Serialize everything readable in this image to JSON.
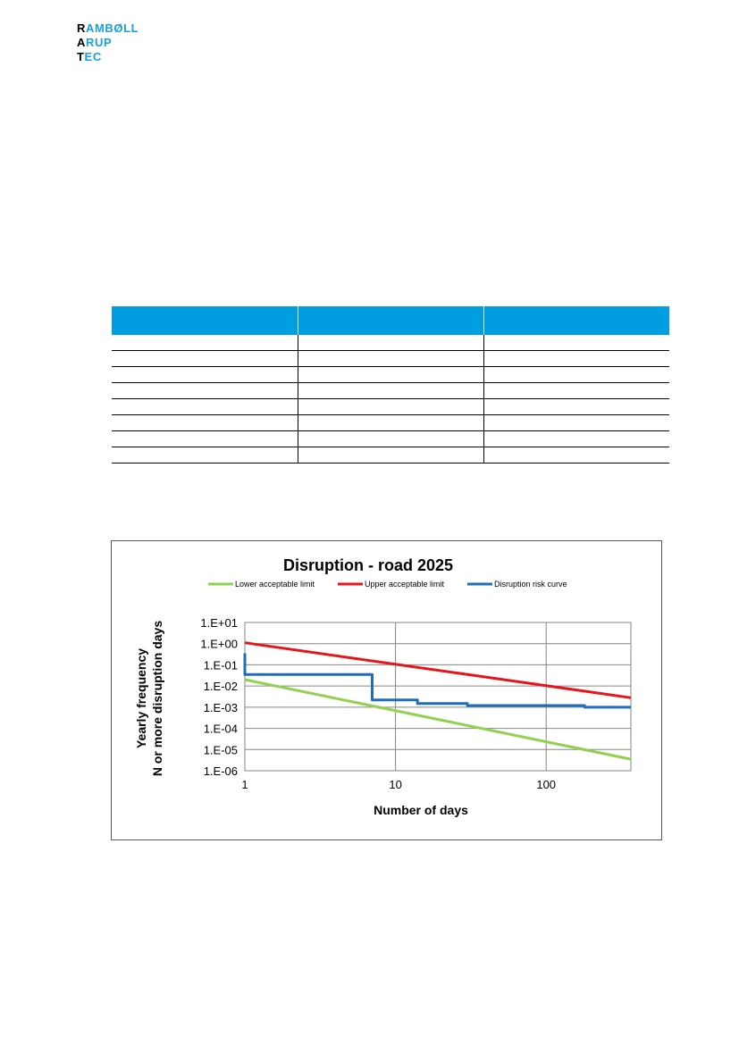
{
  "logo": {
    "lines": [
      {
        "first": "R",
        "rest": "AMBØLL"
      },
      {
        "first": "A",
        "rest": "RUP"
      },
      {
        "first": "T",
        "rest": "EC"
      }
    ]
  },
  "table": {
    "header_color": "#009ee0",
    "columns": [
      "",
      "",
      ""
    ],
    "rows": [
      [
        "",
        "",
        ""
      ],
      [
        "",
        "",
        ""
      ],
      [
        "",
        "",
        ""
      ],
      [
        "",
        "",
        ""
      ],
      [
        "",
        "",
        ""
      ],
      [
        "",
        "",
        ""
      ],
      [
        "",
        "",
        ""
      ],
      [
        "",
        "",
        ""
      ]
    ]
  },
  "chart_data": {
    "type": "line",
    "title": "Disruption - road 2025",
    "xlabel": "Number of days",
    "ylabel": [
      "Yearly frequency",
      "N or more disruption days"
    ],
    "x_scale": "log",
    "y_scale": "log",
    "xlim": [
      1,
      365
    ],
    "ylim": [
      1e-06,
      10
    ],
    "x_ticks": [
      {
        "value": 1,
        "label": "1"
      },
      {
        "value": 10,
        "label": "10"
      },
      {
        "value": 100,
        "label": "100"
      }
    ],
    "y_ticks": [
      {
        "value": 10,
        "label": "1.E+01"
      },
      {
        "value": 1,
        "label": "1.E+00"
      },
      {
        "value": 0.1,
        "label": "1.E-01"
      },
      {
        "value": 0.01,
        "label": "1.E-02"
      },
      {
        "value": 0.001,
        "label": "1.E-03"
      },
      {
        "value": 0.0001,
        "label": "1.E-04"
      },
      {
        "value": 1e-05,
        "label": "1.E-05"
      },
      {
        "value": 1e-06,
        "label": "1.E-06"
      }
    ],
    "grid": true,
    "legend_position": "top",
    "series": [
      {
        "name": "Lower acceptable limit",
        "color": "#92d050",
        "points": [
          [
            1,
            0.02
          ],
          [
            365,
            3.5e-06
          ]
        ]
      },
      {
        "name": "Upper acceptable limit",
        "color": "#e8141b",
        "points": [
          [
            1,
            1.1
          ],
          [
            365,
            0.0028
          ]
        ]
      },
      {
        "name": "Disruption risk curve",
        "color": "#1f6fb5",
        "points": [
          [
            1,
            0.35
          ],
          [
            1,
            0.035
          ],
          [
            7,
            0.035
          ],
          [
            7,
            0.0022
          ],
          [
            14,
            0.0022
          ],
          [
            14,
            0.0015
          ],
          [
            30,
            0.0015
          ],
          [
            30,
            0.0012
          ],
          [
            180,
            0.0012
          ],
          [
            180,
            0.001
          ],
          [
            365,
            0.001
          ]
        ]
      }
    ]
  }
}
